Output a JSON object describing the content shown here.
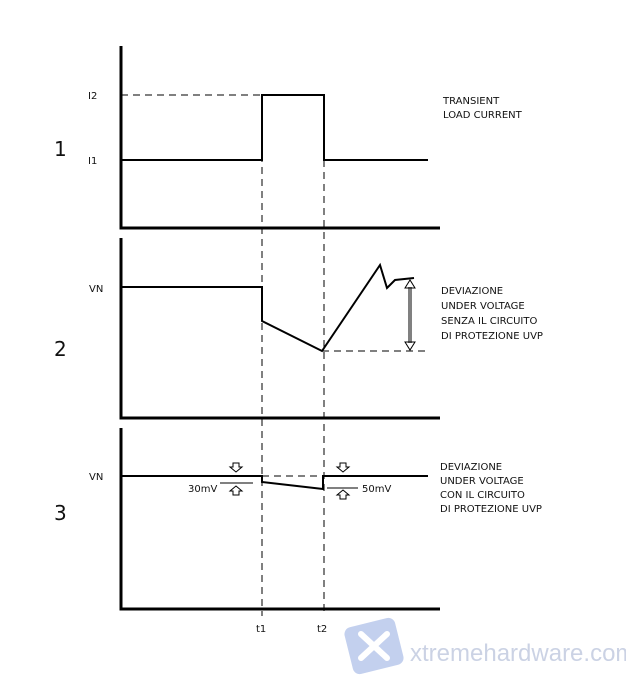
{
  "panels": [
    {
      "number": "1",
      "levels": [
        "I2",
        "I1"
      ],
      "caption": [
        "TRANSIENT",
        "LOAD CURRENT"
      ]
    },
    {
      "number": "2",
      "levels": [
        "VN"
      ],
      "caption": [
        "DEVIAZIONE",
        "UNDER VOLTAGE",
        "SENZA IL CIRCUITO",
        "DI PROTEZIONE UVP"
      ]
    },
    {
      "number": "3",
      "levels": [
        "VN"
      ],
      "caption": [
        "DEVIAZIONE",
        "UNDER VOLTAGE",
        "CON IL CIRCUITO",
        "DI PROTEZIONE UVP"
      ],
      "annotations": [
        "30mV",
        "50mV"
      ]
    }
  ],
  "time_markers": [
    "t1",
    "t2"
  ],
  "watermark": "xtremehardware.com"
}
